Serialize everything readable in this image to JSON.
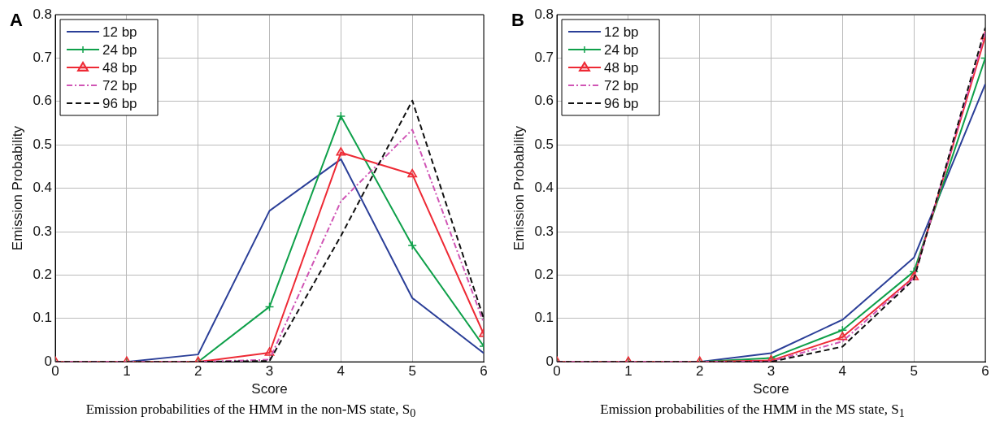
{
  "chart_data": [
    {
      "type": "line",
      "title": "A",
      "xlabel": "Score",
      "ylabel": "Emission Probability",
      "annotations": [
        "Emission probabilities of the HMM in the non-MS state, S$_{0}$"
      ],
      "x": [
        0,
        1,
        2,
        3,
        4,
        5,
        6
      ],
      "xlim": [
        0,
        6
      ],
      "xticks": [
        0,
        1,
        2,
        3,
        4,
        5,
        6
      ],
      "ylim": [
        0,
        0.8
      ],
      "yticks": [
        0,
        0.1,
        0.2,
        0.3,
        0.4,
        0.5,
        0.6,
        0.7,
        0.8
      ],
      "grid": true,
      "legend": "top left",
      "series": [
        {
          "name": "12 bp",
          "color": "#2b3f98",
          "marker": "none",
          "line_style": "solid",
          "values": [
            0,
            0,
            0.017,
            0.348,
            0.467,
            0.147,
            0.02
          ]
        },
        {
          "name": "24 bp",
          "color": "#0fa04a",
          "marker": "cross",
          "line_style": "solid",
          "values": [
            0,
            0,
            0,
            0.127,
            0.566,
            0.268,
            0.036
          ]
        },
        {
          "name": "48 bp",
          "color": "#ee2a35",
          "marker": "triangle",
          "line_style": "solid",
          "values": [
            0,
            0,
            0,
            0.021,
            0.482,
            0.432,
            0.064
          ]
        },
        {
          "name": "72 bp",
          "color": "#d055b5",
          "marker": "none",
          "line_style": "dotted",
          "values": [
            0,
            0,
            0,
            0.005,
            0.37,
            0.535,
            0.09
          ]
        },
        {
          "name": "96 bp",
          "color": "#111111",
          "marker": "none",
          "line_style": "dashed",
          "values": [
            0,
            0,
            0,
            0.002,
            0.29,
            0.602,
            0.1
          ]
        }
      ]
    },
    {
      "type": "line",
      "title": "B",
      "xlabel": "Score",
      "ylabel": "Emission Probability",
      "annotations": [
        "Emission probabilities of the HMM in the MS state, S$_{1}$"
      ],
      "x": [
        0,
        1,
        2,
        3,
        4,
        5,
        6
      ],
      "xlim": [
        0,
        6
      ],
      "xticks": [
        0,
        1,
        2,
        3,
        4,
        5,
        6
      ],
      "ylim": [
        0,
        0.8
      ],
      "yticks": [
        0,
        0.1,
        0.2,
        0.3,
        0.4,
        0.5,
        0.6,
        0.7,
        0.8
      ],
      "grid": true,
      "legend": "top left",
      "series": [
        {
          "name": "12 bp",
          "color": "#2b3f98",
          "marker": "none",
          "line_style": "solid",
          "values": [
            0,
            0,
            0,
            0.02,
            0.097,
            0.24,
            0.64
          ]
        },
        {
          "name": "24 bp",
          "color": "#0fa04a",
          "marker": "cross",
          "line_style": "solid",
          "values": [
            0,
            0,
            0,
            0.009,
            0.073,
            0.208,
            0.7
          ]
        },
        {
          "name": "48 bp",
          "color": "#ee2a35",
          "marker": "triangle",
          "line_style": "solid",
          "values": [
            0,
            0,
            0,
            0.003,
            0.057,
            0.195,
            0.75
          ]
        },
        {
          "name": "72 bp",
          "color": "#d055b5",
          "marker": "none",
          "line_style": "dotted",
          "values": [
            0,
            0,
            0,
            0.001,
            0.047,
            0.193,
            0.76
          ]
        },
        {
          "name": "96 bp",
          "color": "#111111",
          "marker": "none",
          "line_style": "dashed",
          "values": [
            0,
            0,
            0,
            0,
            0.035,
            0.19,
            0.77
          ]
        }
      ]
    }
  ]
}
